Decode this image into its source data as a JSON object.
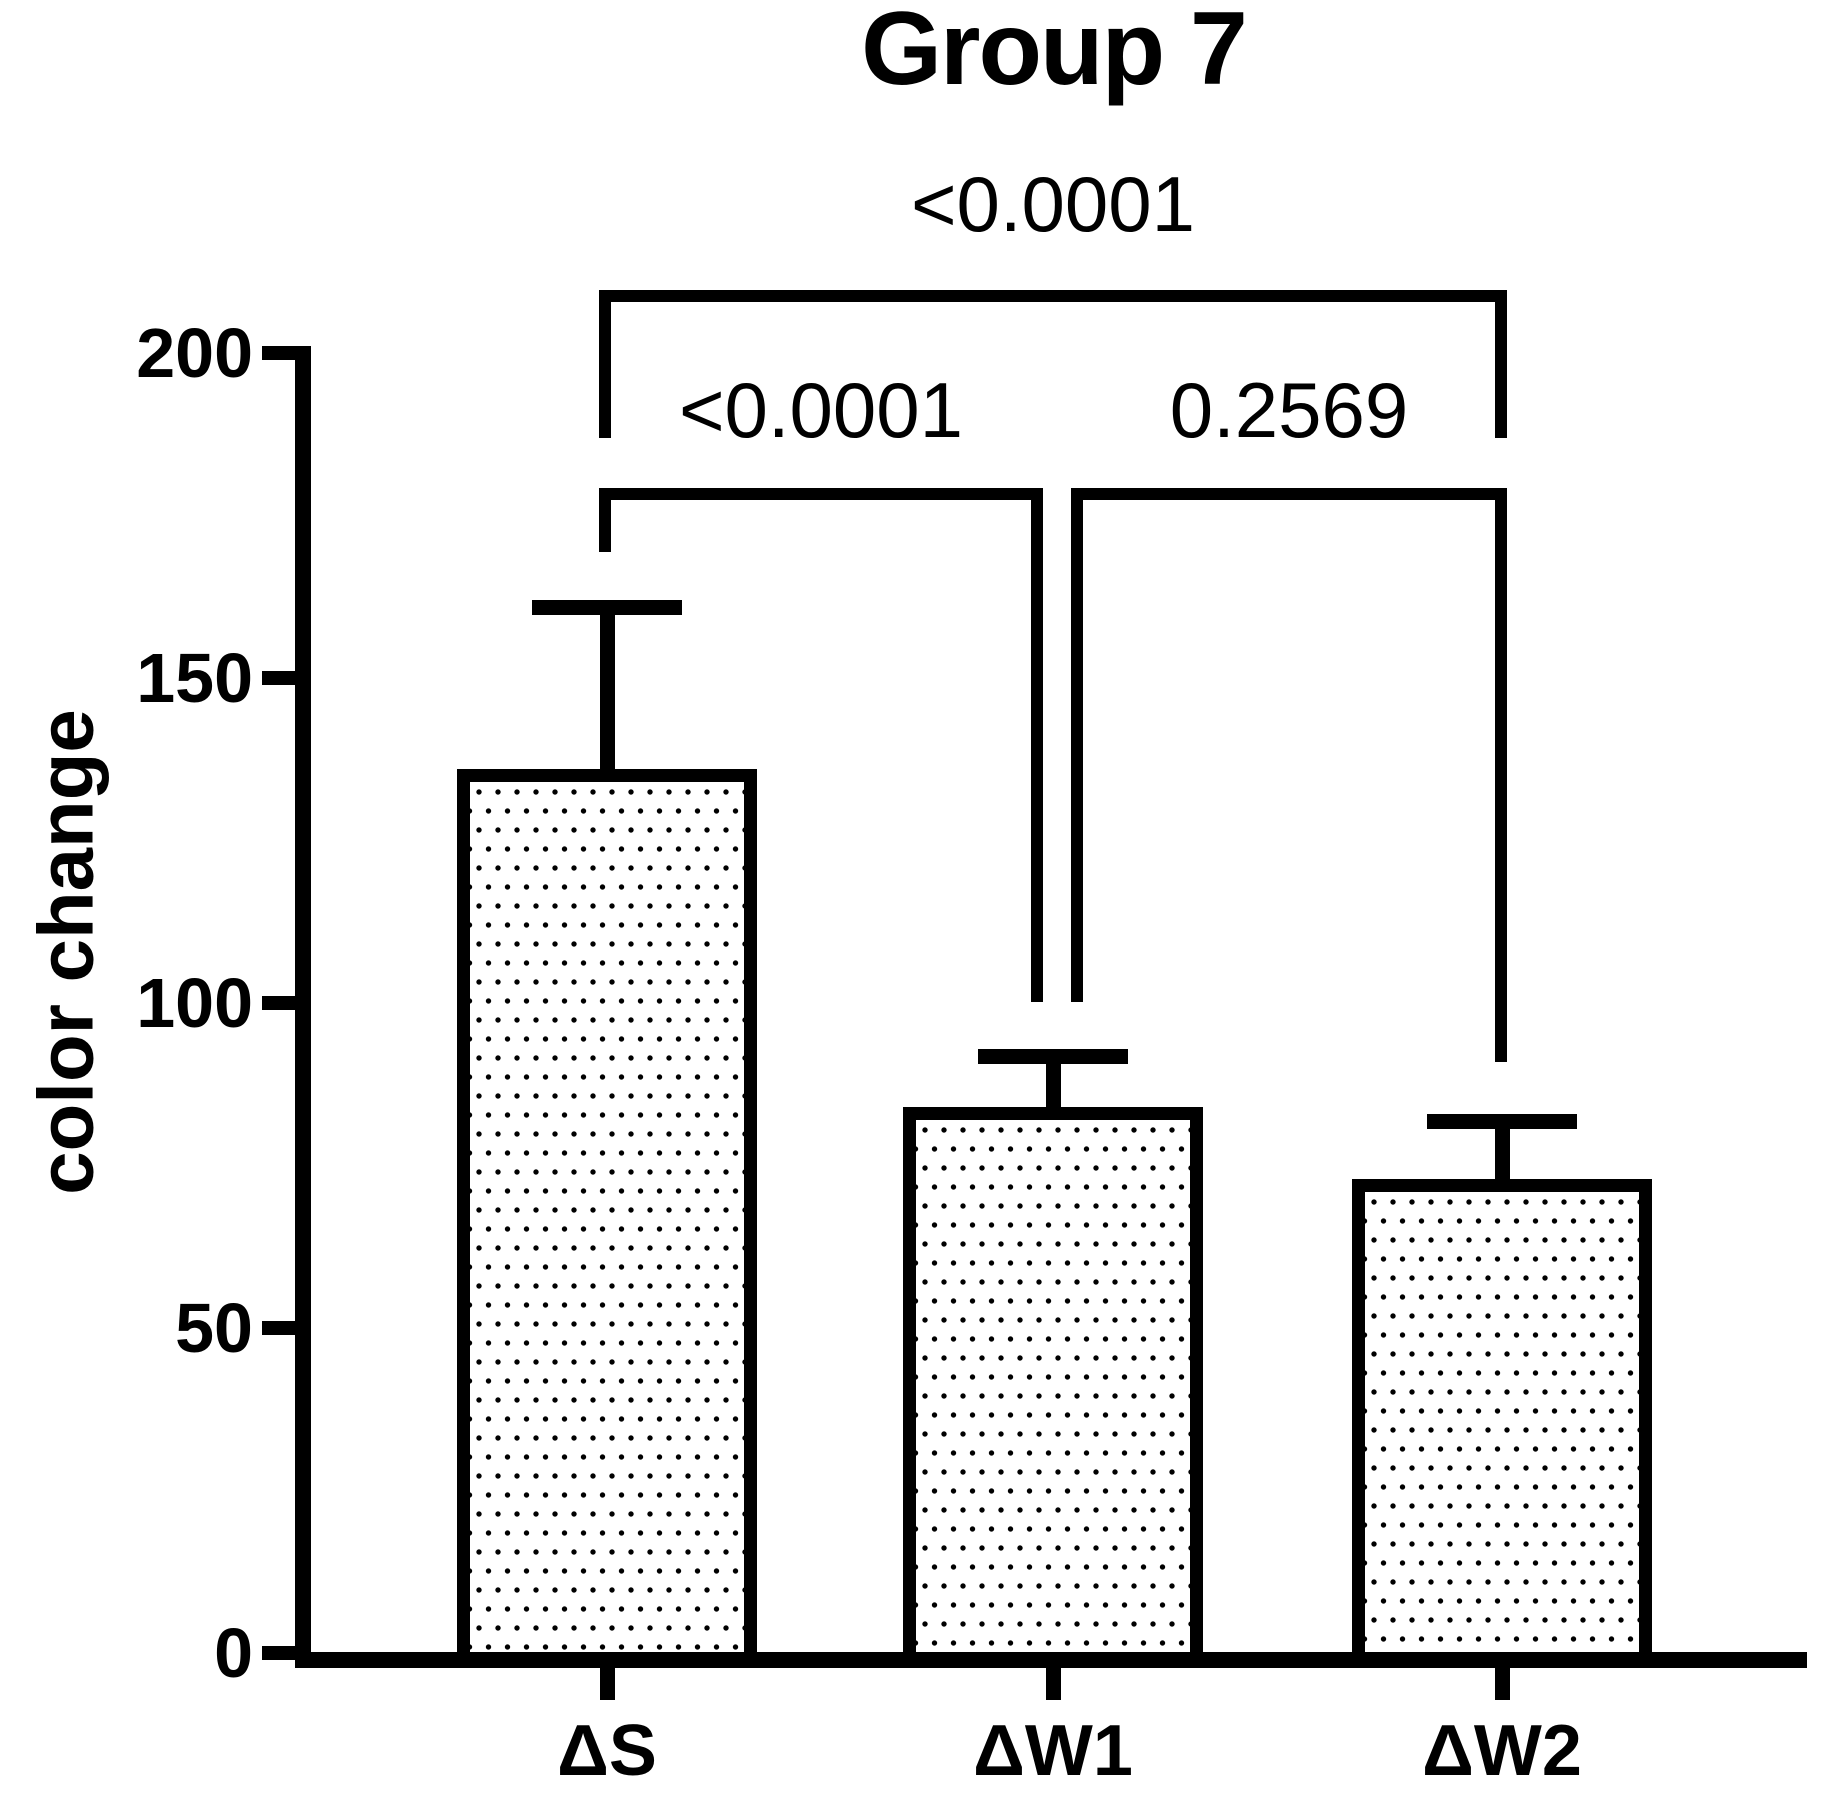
{
  "title": "Group 7",
  "y_axis": {
    "label": "color change",
    "tick_labels": [
      "200",
      "150",
      "100",
      "50",
      "0"
    ]
  },
  "x_axis": {
    "categories": [
      "ΔS",
      "ΔW1",
      "ΔW2"
    ]
  },
  "chart_data": {
    "type": "bar",
    "title": "Group 7",
    "xlabel": "",
    "ylabel": "color change",
    "categories": [
      "ΔS",
      "ΔW1",
      "ΔW2"
    ],
    "values": [
      136,
      84,
      73
    ],
    "error_plus": [
      26,
      9,
      10
    ],
    "error_top": [
      162,
      93,
      83
    ],
    "ylim": [
      0,
      200
    ],
    "yticks": [
      200,
      150,
      100,
      50,
      0
    ],
    "grid": "off",
    "legend": "none",
    "bar_style": "white fill with black square-dot stipple pattern, thick black border",
    "error_style": "upper error bars only, T-shaped caps",
    "comparisons": [
      {
        "from": "ΔS",
        "to": "ΔW2",
        "p": "<0.0001",
        "level": "top"
      },
      {
        "from": "ΔS",
        "to": "ΔW1",
        "p": "<0.0001",
        "level": "second"
      },
      {
        "from": "ΔW1",
        "to": "ΔW2",
        "p": "0.2569",
        "level": "second"
      }
    ],
    "colors": {
      "foreground": "#000000",
      "background": "#ffffff"
    }
  }
}
